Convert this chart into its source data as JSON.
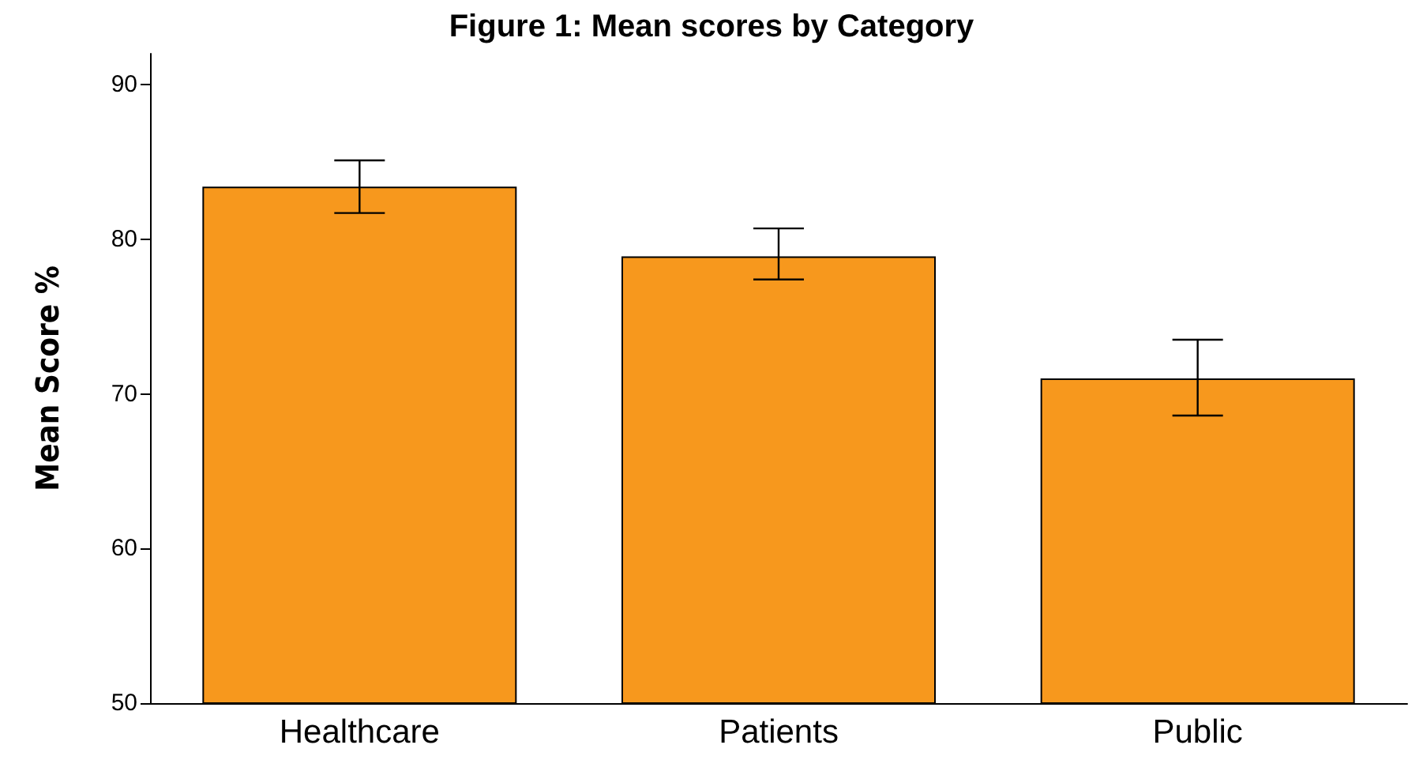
{
  "chart_data": {
    "type": "bar",
    "title": "Figure 1: Mean scores by Category",
    "ylabel": "Mean Score %",
    "categories": [
      "Healthcare",
      "Patients",
      "Public"
    ],
    "values": [
      83.4,
      78.9,
      71.0
    ],
    "errors": [
      [
        81.7,
        85.1
      ],
      [
        77.4,
        80.7
      ],
      [
        68.6,
        73.5
      ]
    ],
    "color": "#f7981d",
    "ylim": [
      50,
      92
    ],
    "yticks": [
      50,
      60,
      70,
      80,
      90
    ],
    "grid": false
  }
}
